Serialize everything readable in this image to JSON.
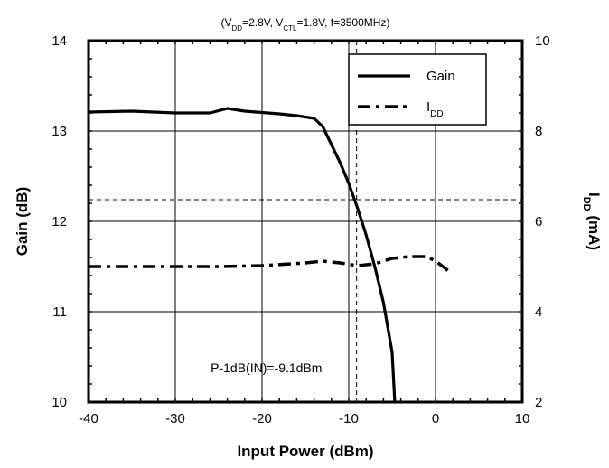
{
  "chart_data": {
    "type": "line",
    "subtitle": {
      "parts": [
        {
          "t": "(V"
        },
        {
          "t": "DD",
          "sub": true
        },
        {
          "t": "=2.8V, V"
        },
        {
          "t": "CTL",
          "sub": true
        },
        {
          "t": "=1.8V, f=3500MHz)"
        }
      ]
    },
    "xlabel": "Input Power (dBm)",
    "ylabel_left": "Gain (dB)",
    "ylabel_right": {
      "main": "I",
      "sub": "DD",
      "tail": " (mA)"
    },
    "xlim": [
      -40,
      10
    ],
    "xticks": [
      -40,
      -30,
      -20,
      -10,
      0,
      10
    ],
    "xtick_labels": [
      "-40",
      "-30",
      "-20",
      "-10",
      "0",
      "10"
    ],
    "ylim_left": [
      10,
      14
    ],
    "yticks_left": [
      10,
      11,
      12,
      13,
      14
    ],
    "ytick_labels_left": [
      "10",
      "11",
      "12",
      "13",
      "14"
    ],
    "ylim_right": [
      2,
      10
    ],
    "yticks_right": [
      2,
      4,
      6,
      8,
      10
    ],
    "ytick_labels_right": [
      "2",
      "4",
      "6",
      "8",
      "10"
    ],
    "grid": true,
    "legend_position": "top-right",
    "series": [
      {
        "name": "Gain",
        "axis": "left",
        "style": "solid",
        "x": [
          -40,
          -35,
          -30,
          -26,
          -24,
          -22,
          -18,
          -16,
          -14,
          -13,
          -12,
          -11,
          -10,
          -9,
          -8,
          -7,
          -6,
          -5,
          -4.7
        ],
        "y": [
          13.21,
          13.22,
          13.2,
          13.2,
          13.25,
          13.22,
          13.19,
          13.17,
          13.14,
          13.05,
          12.85,
          12.65,
          12.42,
          12.15,
          11.85,
          11.5,
          11.1,
          10.55,
          10.0
        ]
      },
      {
        "name": "I",
        "name_sub": "DD",
        "axis": "right",
        "style": "dashdot",
        "x": [
          -40,
          -35,
          -30,
          -25,
          -20,
          -15,
          -13,
          -11,
          -9,
          -7,
          -5,
          -3,
          -1,
          0,
          1,
          1.5
        ],
        "y": [
          5.0,
          5.0,
          5.0,
          5.0,
          5.02,
          5.08,
          5.12,
          5.08,
          5.02,
          5.06,
          5.18,
          5.22,
          5.22,
          5.12,
          4.98,
          4.9
        ]
      }
    ],
    "reference_lines": {
      "x": -9.1,
      "y_left": 12.24
    },
    "annotation": "P-1dB(IN)=-9.1dBm",
    "annotation_at": {
      "x": -19.5,
      "y": 10.33
    }
  }
}
